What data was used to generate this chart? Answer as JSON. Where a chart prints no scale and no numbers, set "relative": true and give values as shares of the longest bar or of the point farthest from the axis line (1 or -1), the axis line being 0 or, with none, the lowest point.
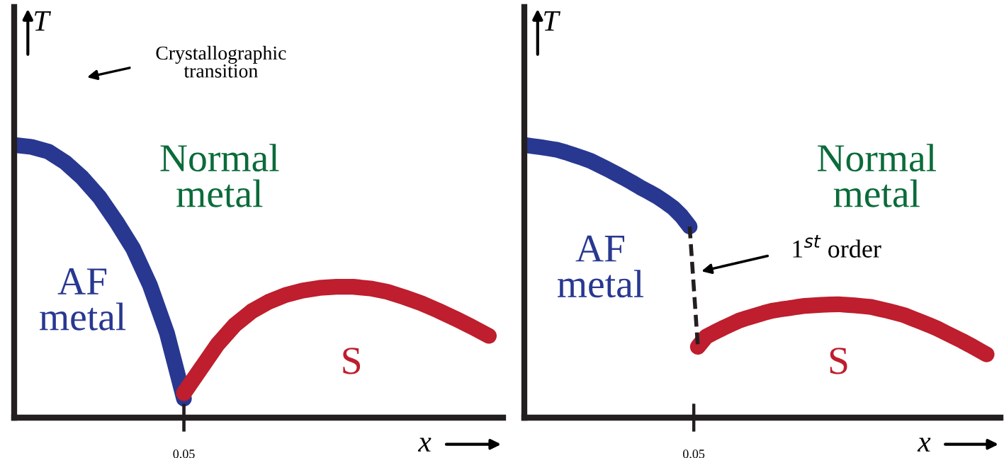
{
  "chart_data": [
    {
      "type": "line",
      "relative": true,
      "xlabel": "x",
      "ylabel": "T",
      "line_style": "solid",
      "categories": [
        null,
        null,
        null,
        null,
        null,
        null,
        null,
        null,
        null,
        null,
        null,
        null,
        null,
        null,
        null,
        null,
        null,
        null,
        null,
        null,
        null,
        null,
        null,
        null,
        null,
        null,
        null,
        null,
        null
      ],
      "series": [
        {
          "color": "#283891",
          "values": [
            1.0,
            0.993,
            0.976,
            0.936,
            0.88,
            0.81,
            0.72,
            0.62,
            0.485,
            0.31,
            0.07,
            null,
            null,
            null,
            null,
            null,
            null,
            null,
            null,
            null,
            null,
            null,
            null,
            null,
            null,
            null,
            null,
            null,
            null
          ]
        },
        {
          "color": "#be1e2d",
          "values": [
            null,
            null,
            null,
            null,
            null,
            null,
            null,
            null,
            null,
            null,
            0.09,
            0.18,
            0.27,
            0.34,
            0.39,
            0.425,
            0.45,
            0.466,
            0.476,
            0.48,
            0.48,
            0.474,
            0.462,
            0.442,
            0.42,
            0.393,
            0.364,
            0.333,
            0.3
          ]
        }
      ],
      "annotations": [
        "Crystallographic\ntransition",
        "Normal\nmetal",
        "AF\nmetal",
        "S",
        "0.05"
      ]
    },
    {
      "type": "line",
      "relative": true,
      "xlabel": "x",
      "ylabel": "T",
      "line_style": "solid",
      "categories": [
        null,
        null,
        null,
        null,
        null,
        null,
        null,
        null,
        null,
        null,
        null,
        null,
        null,
        null,
        null,
        null,
        null,
        null,
        null,
        null,
        null,
        null,
        null,
        null,
        null,
        null,
        null,
        null,
        null,
        null,
        null,
        null,
        null,
        null,
        null,
        null,
        null,
        null,
        null,
        null,
        null,
        null,
        null,
        null,
        null,
        null,
        null,
        null,
        null,
        null,
        null,
        null,
        null,
        null,
        null,
        null,
        null
      ],
      "series": [
        {
          "color": "#283891",
          "values": [
            1.0,
            0.996,
            0.992,
            0.987,
            0.982,
            0.973,
            0.963,
            0.953,
            0.942,
            0.927,
            0.912,
            0.896,
            0.88,
            0.863,
            0.845,
            0.829,
            0.812,
            0.792,
            0.77,
            0.74,
            0.701,
            null,
            null,
            null,
            null,
            null,
            null,
            null,
            null,
            null,
            null,
            null,
            null,
            null,
            null,
            null,
            null,
            null,
            null,
            null,
            null,
            null,
            null,
            null,
            null,
            null,
            null,
            null,
            null,
            null,
            null,
            null,
            null,
            null,
            null,
            null,
            null
          ]
        },
        {
          "color": "#be1e2d",
          "values": [
            null,
            null,
            null,
            null,
            null,
            null,
            null,
            null,
            null,
            null,
            null,
            null,
            null,
            null,
            null,
            null,
            null,
            null,
            null,
            null,
            null,
            0.26,
            0.297,
            0.313,
            0.328,
            0.342,
            0.356,
            0.366,
            0.375,
            0.384,
            0.392,
            0.397,
            0.401,
            0.406,
            0.41,
            0.412,
            0.414,
            0.415,
            0.416,
            0.414,
            0.412,
            0.409,
            0.406,
            0.399,
            0.392,
            0.384,
            0.376,
            0.364,
            0.352,
            0.34,
            0.327,
            0.312,
            0.297,
            0.282,
            0.266,
            0.249,
            0.232
          ]
        },
        {
          "color": "#231f20",
          "line_style": "dashed",
          "values": [
            null,
            null,
            null,
            null,
            null,
            null,
            null,
            null,
            null,
            null,
            null,
            null,
            null,
            null,
            null,
            null,
            null,
            null,
            null,
            null,
            0.701,
            0.26,
            null,
            null,
            null,
            null,
            null,
            null,
            null,
            null,
            null,
            null,
            null,
            null,
            null,
            null,
            null,
            null,
            null,
            null,
            null,
            null,
            null,
            null,
            null,
            null,
            null,
            null,
            null,
            null,
            null,
            null,
            null,
            null,
            null,
            null,
            null
          ]
        }
      ],
      "annotations": [
        "1$^{st}$ order",
        "Normal\nmetal",
        "AF\nmetal",
        "S",
        "0.05"
      ]
    }
  ]
}
